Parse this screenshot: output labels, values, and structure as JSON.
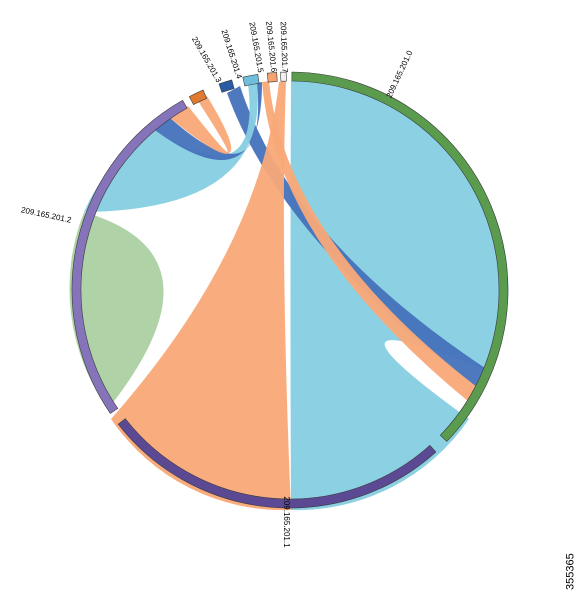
{
  "figure_id": "355365",
  "segments": [
    {
      "key": "s0",
      "label": "209.165.201.0",
      "color": "#5a9b4e"
    },
    {
      "key": "s1",
      "label": "209.165.201.1",
      "color": "#5b4a93"
    },
    {
      "key": "s2",
      "label": "209.165.201.2",
      "color": "#8674ba"
    },
    {
      "key": "s3",
      "label": "209.165.201.3",
      "color": "#e07a2e"
    },
    {
      "key": "s4",
      "label": "209.165.201.4",
      "color": "#2a5ca6"
    },
    {
      "key": "s5",
      "label": "209.165.201.5",
      "color": "#6fbfdc"
    },
    {
      "key": "s6",
      "label": "209.165.201.6",
      "color": "#f7a36e"
    },
    {
      "key": "s7",
      "label": "209.165.201.7",
      "color": "#f1f1f1"
    }
  ],
  "colors": {
    "cyan": "#86cfe2",
    "orange": "#f9a978",
    "green": "#acd0a2",
    "blue": "#4472bb"
  }
}
